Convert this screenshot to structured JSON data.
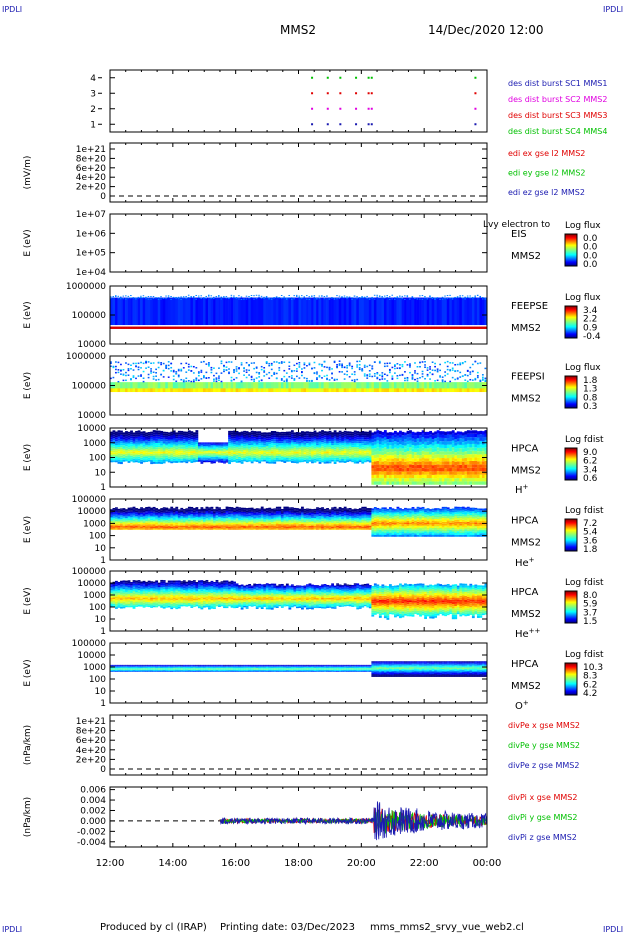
{
  "header": {
    "spacecraft": "MMS2",
    "datetime": "14/Dec/2020 12:00",
    "corner_label": "IPDLI"
  },
  "footer": {
    "produced_by": "Produced by cl (IRAP)",
    "printing_date": "Printing date: 03/Dec/2023",
    "script_name": "mms_mms2_srvy_vue_web2.cl"
  },
  "colors": {
    "frame": "#000000",
    "sc1": "#1a1ab0",
    "sc2": "#e000e0",
    "sc3": "#e00000",
    "sc4": "#00c000",
    "x_comp": "#e00000",
    "y_comp": "#00c000",
    "z_comp": "#1a1ab0"
  },
  "time_axis": {
    "ticks": [
      "12:00",
      "14:00",
      "16:00",
      "18:00",
      "20:00",
      "22:00",
      "00:00"
    ],
    "start_hour": 12,
    "end_hour": 24
  },
  "chart_data": [
    {
      "id": "burst",
      "type": "scatter",
      "ylabel": "",
      "ticks": [
        "4",
        "3",
        "2",
        "1"
      ],
      "ylim": [
        0.5,
        4.5
      ],
      "series": [
        {
          "name": "des dist burst SC1 MMS1",
          "level": 1,
          "color": "#1a1ab0",
          "times": [
            18.4,
            18.9,
            19.3,
            19.8,
            20.2,
            20.3,
            23.6
          ]
        },
        {
          "name": "des dist burst SC2 MMS2",
          "level": 2,
          "color": "#e000e0",
          "times": [
            18.4,
            18.9,
            19.3,
            19.8,
            20.2,
            20.3,
            23.6
          ]
        },
        {
          "name": "des dist burst SC3 MMS3",
          "level": 3,
          "color": "#e00000",
          "times": [
            18.4,
            18.9,
            19.3,
            19.8,
            20.2,
            20.3,
            23.6
          ]
        },
        {
          "name": "des dist burst SC4 MMS4",
          "level": 4,
          "color": "#00c000",
          "times": [
            18.4,
            18.9,
            19.3,
            19.8,
            20.2,
            20.3,
            23.6
          ]
        }
      ]
    },
    {
      "id": "edi",
      "type": "line",
      "ylabel": "(mV/m)",
      "ticks": [
        "1e+21",
        "8e+20",
        "6e+20",
        "4e+20",
        "2e+20",
        "0"
      ],
      "ylim": [
        0,
        1e+21
      ],
      "series": [
        {
          "name": "edi ex gse l2 MMS2",
          "color": "#e00000"
        },
        {
          "name": "edi ey gse l2 MMS2",
          "color": "#00c000"
        },
        {
          "name": "edi ez gse l2 MMS2",
          "color": "#1a1ab0"
        }
      ]
    },
    {
      "id": "eis",
      "type": "heatmap",
      "ylabel": "E (eV)",
      "ticks": [
        "1e+07",
        "1e+06",
        "1e+05",
        "1e+04"
      ],
      "ylim": [
        10000,
        10000000
      ],
      "instrument": "EIS",
      "extra_label": "Lvy electron to",
      "spacecraft": "MMS2",
      "colorbar_title": "Log flux",
      "colorbar_ticks": [
        "0.0",
        "0.0",
        "0.0",
        "0.0"
      ]
    },
    {
      "id": "feepse",
      "type": "heatmap",
      "ylabel": "E (eV)",
      "ticks": [
        "1000000",
        "100000",
        "10000"
      ],
      "ylim": [
        10000,
        1000000
      ],
      "instrument": "FEEPSE",
      "spacecraft": "MMS2",
      "colorbar_title": "Log flux",
      "colorbar_ticks": [
        "3.4",
        "2.2",
        "0.9",
        "-0.4"
      ]
    },
    {
      "id": "feepsi",
      "type": "heatmap",
      "ylabel": "E (eV)",
      "ticks": [
        "1000000",
        "100000",
        "10000"
      ],
      "ylim": [
        10000,
        1000000
      ],
      "instrument": "FEEPSI",
      "spacecraft": "MMS2",
      "colorbar_title": "Log flux",
      "colorbar_ticks": [
        "1.8",
        "1.3",
        "0.8",
        "0.3"
      ]
    },
    {
      "id": "hpca_h",
      "type": "heatmap",
      "ylabel": "E (eV)",
      "ticks": [
        "10000",
        "1000",
        "100",
        "10",
        "1"
      ],
      "ylim": [
        1,
        40000
      ],
      "instrument": "HPCA",
      "spacecraft": "MMS2",
      "species": "H",
      "species_charge": "+",
      "colorbar_title": "Log fdist",
      "colorbar_ticks": [
        "9.0",
        "6.2",
        "3.4",
        "0.6"
      ]
    },
    {
      "id": "hpca_he1",
      "type": "heatmap",
      "ylabel": "E (eV)",
      "ticks": [
        "100000",
        "10000",
        "1000",
        "100",
        "10",
        "1"
      ],
      "ylim": [
        1,
        100000
      ],
      "instrument": "HPCA",
      "spacecraft": "MMS2",
      "species": "He",
      "species_charge": "+",
      "colorbar_title": "Log fdist",
      "colorbar_ticks": [
        "7.2",
        "5.4",
        "3.6",
        "1.8"
      ]
    },
    {
      "id": "hpca_he2",
      "type": "heatmap",
      "ylabel": "E (eV)",
      "ticks": [
        "100000",
        "10000",
        "1000",
        "100",
        "10",
        "1"
      ],
      "ylim": [
        1,
        100000
      ],
      "instrument": "HPCA",
      "spacecraft": "MMS2",
      "species": "He",
      "species_charge": "++",
      "colorbar_title": "Log fdist",
      "colorbar_ticks": [
        "8.0",
        "5.9",
        "3.7",
        "1.5"
      ]
    },
    {
      "id": "hpca_o",
      "type": "heatmap",
      "ylabel": "E (eV)",
      "ticks": [
        "100000",
        "10000",
        "1000",
        "100",
        "10",
        "1"
      ],
      "ylim": [
        1,
        100000
      ],
      "instrument": "HPCA",
      "spacecraft": "MMS2",
      "species": "O",
      "species_charge": "+",
      "colorbar_title": "Log fdist",
      "colorbar_ticks": [
        "10.3",
        "8.3",
        "6.2",
        "4.2"
      ]
    },
    {
      "id": "divpe",
      "type": "line",
      "ylabel": "(nPa/km)",
      "ticks": [
        "1e+21",
        "8e+20",
        "6e+20",
        "4e+20",
        "2e+20",
        "0"
      ],
      "ylim": [
        0,
        1e+21
      ],
      "series": [
        {
          "name": "divPe x gse MMS2",
          "color": "#e00000"
        },
        {
          "name": "divPe y gse MMS2",
          "color": "#00c000"
        },
        {
          "name": "divPe z gse MMS2",
          "color": "#1a1ab0"
        }
      ]
    },
    {
      "id": "divpi",
      "type": "line",
      "ylabel": "(nPa/km)",
      "ticks": [
        "0.006",
        "0.004",
        "0.002",
        "0.000",
        "-0.002",
        "-0.004"
      ],
      "ylim": [
        -0.005,
        0.0065
      ],
      "data_start_hour": 15.5,
      "burst_start_hour": 20.4,
      "quiet_amplitude": 0.0005,
      "active_amplitude": 0.0025,
      "series": [
        {
          "name": "divPi x gse MMS2",
          "color": "#e00000"
        },
        {
          "name": "divPi y gse MMS2",
          "color": "#00c000"
        },
        {
          "name": "divPi z gse MMS2",
          "color": "#1a1ab0"
        }
      ]
    }
  ]
}
